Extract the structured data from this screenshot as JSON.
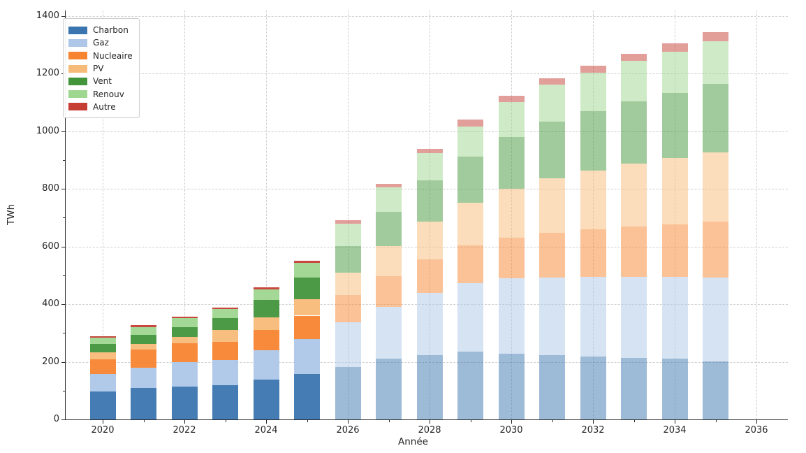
{
  "chart_data": {
    "type": "bar",
    "stacked": true,
    "title": "",
    "xlabel": "Année",
    "ylabel": "TWh",
    "x": [
      2020,
      2021,
      2022,
      2023,
      2024,
      2025,
      2026,
      2027,
      2028,
      2029,
      2030,
      2031,
      2032,
      2033,
      2034,
      2035
    ],
    "series": [
      {
        "name": "Charbon",
        "color": "#3b75af",
        "values": [
          98,
          109,
          115,
          119,
          137,
          158,
          183,
          210,
          224,
          234,
          227,
          222,
          218,
          214,
          210,
          202
        ]
      },
      {
        "name": "Gaz",
        "color": "#aec7e8",
        "values": [
          60,
          70,
          83,
          86,
          103,
          121,
          153,
          180,
          215,
          239,
          262,
          271,
          277,
          281,
          285,
          290
        ]
      },
      {
        "name": "Nucleaire",
        "color": "#f78430",
        "values": [
          50,
          63,
          67,
          64,
          71,
          81,
          96,
          108,
          116,
          131,
          141,
          154,
          164,
          173,
          182,
          195
        ]
      },
      {
        "name": "PV",
        "color": "#f7bb79",
        "values": [
          24,
          21,
          20,
          41,
          44,
          58,
          77,
          104,
          132,
          148,
          170,
          190,
          204,
          219,
          230,
          238
        ]
      },
      {
        "name": "Vent",
        "color": "#43953c",
        "values": [
          29,
          31,
          34,
          42,
          59,
          73,
          93,
          117,
          142,
          160,
          180,
          195,
          206,
          216,
          226,
          238
        ]
      },
      {
        "name": "Renouv",
        "color": "#9fd690",
        "values": [
          22,
          27,
          32,
          31,
          38,
          52,
          76,
          86,
          94,
          103,
          120,
          129,
          133,
          141,
          143,
          148
        ]
      },
      {
        "name": "Autre",
        "color": "#c63d34",
        "values": [
          6,
          6,
          6,
          6,
          7,
          7,
          12,
          12,
          16,
          24,
          22,
          22,
          24,
          24,
          28,
          31
        ]
      }
    ],
    "forecast_start": 2026,
    "opacity_historical": 0.95,
    "opacity_forecast": 0.5,
    "ylim": [
      0,
      1400
    ],
    "y_ticks": [
      0,
      200,
      400,
      600,
      800,
      1000,
      1200,
      1400
    ],
    "x_ticks": [
      2020,
      2022,
      2024,
      2026,
      2028,
      2030,
      2032,
      2034,
      2036
    ],
    "grid": true,
    "grid_color": "#cfcfcf",
    "legend_position": "upper left",
    "legend_labels": [
      "Charbon",
      "Gaz",
      "Nucleaire",
      "PV",
      "Vent",
      "Renouv",
      "Autre"
    ]
  }
}
